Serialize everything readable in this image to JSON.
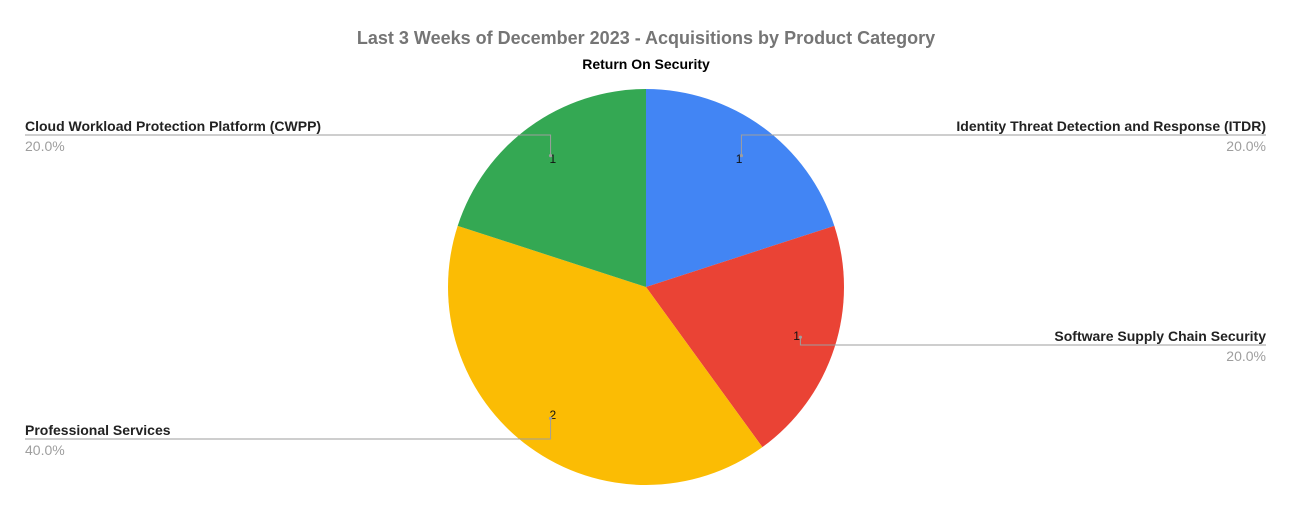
{
  "chart_data": {
    "type": "pie",
    "title": "Last 3 Weeks of December 2023 - Acquisitions by Product Category",
    "subtitle": "Return On Security",
    "slices": [
      {
        "label": "Identity Threat Detection and Response (ITDR)",
        "value": 1,
        "percent": "20.0%",
        "color": "#4285f4"
      },
      {
        "label": "Software Supply Chain Security",
        "value": 1,
        "percent": "20.0%",
        "color": "#ea4335"
      },
      {
        "label": "Professional Services",
        "value": 2,
        "percent": "40.0%",
        "color": "#fbbc04"
      },
      {
        "label": "Cloud Workload Protection Platform (CWPP)",
        "value": 1,
        "percent": "20.0%",
        "color": "#34a853"
      }
    ],
    "start_angle_deg": 0,
    "direction": "clockwise",
    "legend": "callouts"
  }
}
